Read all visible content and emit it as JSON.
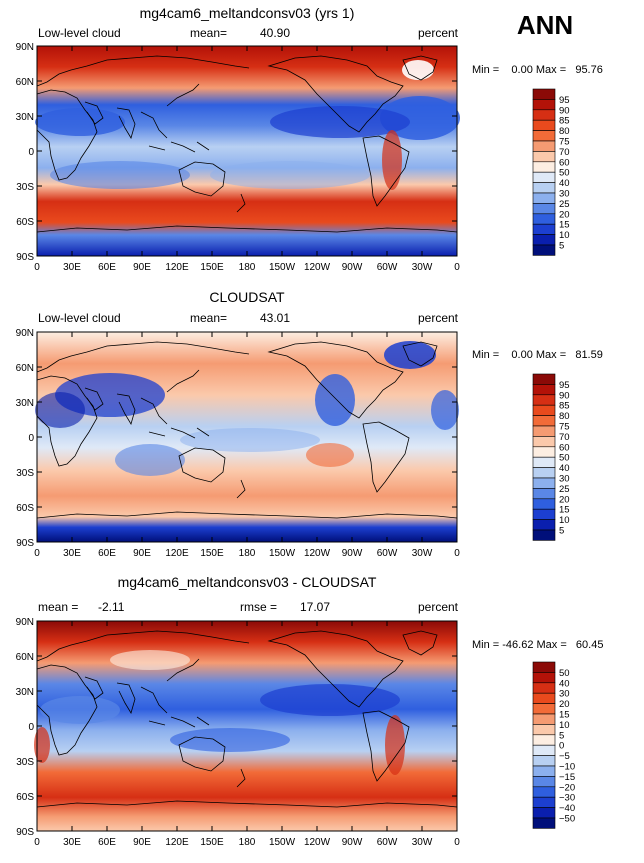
{
  "season": "ANN",
  "tick_labels": {
    "lat": [
      "90N",
      "60N",
      "30N",
      "0",
      "30S",
      "60S",
      "90S"
    ],
    "lon": [
      "0",
      "30E",
      "60E",
      "90E",
      "120E",
      "150E",
      "180",
      "150W",
      "120W",
      "90W",
      "60W",
      "30W",
      "0"
    ]
  },
  "colors": {
    "ocean_blue_deep": "#001a8c",
    "ocean_blue": "#2655e0",
    "light_blue": "#a9c6f2",
    "neutral": "#f7f3ec",
    "orange": "#f08a5c",
    "red": "#d62f14",
    "dark_red": "#8b0a07",
    "coast": "#000000"
  },
  "panels": [
    {
      "title": "mg4cam6_meltandconsv03 (yrs 1)",
      "left_label": "Low-level cloud",
      "stat1_label": "mean=",
      "stat1_value": "40.90",
      "stat2_label": "",
      "stat2_value": "",
      "units": "percent",
      "minmax": "Min =    0.00 Max =   95.76",
      "colorbar": {
        "levels": [
          "95",
          "90",
          "85",
          "80",
          "75",
          "70",
          "60",
          "50",
          "40",
          "30",
          "25",
          "20",
          "15",
          "10",
          "5"
        ],
        "colors": [
          "#8b0a07",
          "#b31208",
          "#d62f14",
          "#e94a1d",
          "#f26b38",
          "#f59b72",
          "#fbc9ab",
          "#fdeee2",
          "#dfe9f7",
          "#b8d0f2",
          "#8cb0ee",
          "#5a87e6",
          "#2f5fdf",
          "#1c3fd0",
          "#0a1fae",
          "#000f7a"
        ]
      }
    },
    {
      "title": "CLOUDSAT",
      "left_label": "Low-level cloud",
      "stat1_label": "mean=",
      "stat1_value": "43.01",
      "stat2_label": "",
      "stat2_value": "",
      "units": "percent",
      "minmax": "Min =    0.00 Max =   81.59",
      "colorbar": {
        "levels": [
          "95",
          "90",
          "85",
          "80",
          "75",
          "70",
          "60",
          "50",
          "40",
          "30",
          "25",
          "20",
          "15",
          "10",
          "5"
        ],
        "colors": [
          "#8b0a07",
          "#b31208",
          "#d62f14",
          "#e94a1d",
          "#f26b38",
          "#f59b72",
          "#fbc9ab",
          "#fdeee2",
          "#dfe9f7",
          "#b8d0f2",
          "#8cb0ee",
          "#5a87e6",
          "#2f5fdf",
          "#1c3fd0",
          "#0a1fae",
          "#000f7a"
        ]
      }
    },
    {
      "title": "mg4cam6_meltandconsv03 - CLOUDSAT",
      "left_label": "",
      "stat1_label": "mean =",
      "stat1_value": "-2.11",
      "stat2_label": "rmse =",
      "stat2_value": "17.07",
      "units": "percent",
      "minmax": "Min = -46.62 Max =   60.45",
      "colorbar": {
        "levels": [
          "50",
          "40",
          "30",
          "20",
          "15",
          "10",
          "5",
          "0",
          "−5",
          "−10",
          "−15",
          "−20",
          "−30",
          "−40",
          "−50"
        ],
        "colors": [
          "#8b0a07",
          "#b31208",
          "#d62f14",
          "#e94a1d",
          "#f26b38",
          "#f59b72",
          "#fbc9ab",
          "#fdeee2",
          "#dfe9f7",
          "#b8d0f2",
          "#8cb0ee",
          "#5a87e6",
          "#2f5fdf",
          "#1c3fd0",
          "#0a1fae",
          "#000f7a"
        ]
      }
    }
  ]
}
